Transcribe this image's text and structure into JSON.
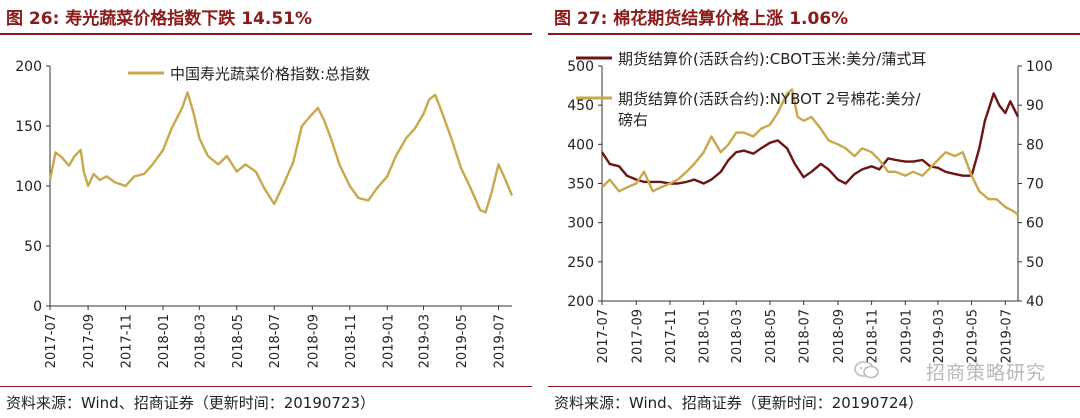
{
  "left": {
    "title": "图 26:  寿光蔬菜价格指数下跌 14.51%",
    "source": "资料来源：Wind、招商证券（更新时间：20190723）"
  },
  "right": {
    "title": "图 27:  棉花期货结算价格上涨 1.06%",
    "source": "资料来源：Wind、招商证券（更新时间：20190724）"
  },
  "watermark": "招商策略研究",
  "colors": {
    "title": "#8b1a1a",
    "series_gold": "#c8a84b",
    "series_maroon": "#6e1414"
  },
  "chart_data": [
    {
      "type": "line",
      "title": "",
      "xlabel": "",
      "ylabel": "",
      "ylim": [
        0,
        200
      ],
      "yticks": [
        0,
        50,
        100,
        150,
        200
      ],
      "xticks": [
        "2017-07",
        "2017-09",
        "2017-11",
        "2018-01",
        "2018-03",
        "2018-05",
        "2018-07",
        "2018-09",
        "2018-11",
        "2019-01",
        "2019-03",
        "2019-05",
        "2019-07"
      ],
      "x_range": [
        "2017-07-01",
        "2019-07-23"
      ],
      "legend_position": "top-center",
      "series": [
        {
          "name": "中国寿光蔬菜价格指数:总指数",
          "color": "#c8a84b",
          "points": [
            [
              "2017-07-01",
              105
            ],
            [
              "2017-07-10",
              128
            ],
            [
              "2017-07-20",
              124
            ],
            [
              "2017-08-01",
              117
            ],
            [
              "2017-08-10",
              125
            ],
            [
              "2017-08-20",
              130
            ],
            [
              "2017-08-25",
              112
            ],
            [
              "2017-09-01",
              100
            ],
            [
              "2017-09-10",
              110
            ],
            [
              "2017-09-20",
              105
            ],
            [
              "2017-10-01",
              108
            ],
            [
              "2017-10-15",
              103
            ],
            [
              "2017-11-01",
              100
            ],
            [
              "2017-11-15",
              108
            ],
            [
              "2017-12-01",
              110
            ],
            [
              "2017-12-15",
              118
            ],
            [
              "2018-01-01",
              130
            ],
            [
              "2018-01-15",
              148
            ],
            [
              "2018-02-01",
              165
            ],
            [
              "2018-02-10",
              178
            ],
            [
              "2018-02-20",
              160
            ],
            [
              "2018-03-01",
              140
            ],
            [
              "2018-03-15",
              125
            ],
            [
              "2018-04-01",
              118
            ],
            [
              "2018-04-15",
              125
            ],
            [
              "2018-05-01",
              112
            ],
            [
              "2018-05-15",
              118
            ],
            [
              "2018-06-01",
              112
            ],
            [
              "2018-06-15",
              98
            ],
            [
              "2018-07-01",
              85
            ],
            [
              "2018-07-15",
              100
            ],
            [
              "2018-08-01",
              120
            ],
            [
              "2018-08-15",
              150
            ],
            [
              "2018-09-01",
              160
            ],
            [
              "2018-09-10",
              165
            ],
            [
              "2018-09-20",
              155
            ],
            [
              "2018-10-01",
              140
            ],
            [
              "2018-10-15",
              118
            ],
            [
              "2018-11-01",
              100
            ],
            [
              "2018-11-15",
              90
            ],
            [
              "2018-12-01",
              88
            ],
            [
              "2018-12-15",
              98
            ],
            [
              "2019-01-01",
              108
            ],
            [
              "2019-01-15",
              125
            ],
            [
              "2019-02-01",
              140
            ],
            [
              "2019-02-15",
              148
            ],
            [
              "2019-03-01",
              160
            ],
            [
              "2019-03-10",
              172
            ],
            [
              "2019-03-20",
              176
            ],
            [
              "2019-04-01",
              160
            ],
            [
              "2019-04-15",
              140
            ],
            [
              "2019-05-01",
              115
            ],
            [
              "2019-05-15",
              100
            ],
            [
              "2019-06-01",
              80
            ],
            [
              "2019-06-10",
              78
            ],
            [
              "2019-06-20",
              95
            ],
            [
              "2019-07-01",
              118
            ],
            [
              "2019-07-10",
              108
            ],
            [
              "2019-07-23",
              92
            ]
          ]
        }
      ]
    },
    {
      "type": "line",
      "title": "",
      "xlabel": "",
      "ylabel": "",
      "ylim": [
        200,
        500
      ],
      "yticks": [
        200,
        250,
        300,
        350,
        400,
        450,
        500
      ],
      "y2lim": [
        40,
        100
      ],
      "y2ticks": [
        40,
        50,
        60,
        70,
        80,
        90,
        100
      ],
      "xticks": [
        "2017-07",
        "2017-09",
        "2017-11",
        "2018-01",
        "2018-03",
        "2018-05",
        "2018-07",
        "2018-09",
        "2018-11",
        "2019-01",
        "2019-03",
        "2019-05",
        "2019-07"
      ],
      "x_range": [
        "2017-07-01",
        "2019-07-24"
      ],
      "legend_position": "top-left",
      "series": [
        {
          "name": "期货结算价(活跃合约):CBOT玉米:美分/蒲式耳",
          "axis": "left",
          "color": "#6e1414",
          "points": [
            [
              "2017-07-01",
              390
            ],
            [
              "2017-07-15",
              375
            ],
            [
              "2017-08-01",
              372
            ],
            [
              "2017-08-15",
              360
            ],
            [
              "2017-09-01",
              355
            ],
            [
              "2017-09-15",
              352
            ],
            [
              "2017-10-01",
              352
            ],
            [
              "2017-10-15",
              352
            ],
            [
              "2017-11-01",
              350
            ],
            [
              "2017-11-15",
              350
            ],
            [
              "2017-12-01",
              352
            ],
            [
              "2017-12-15",
              355
            ],
            [
              "2018-01-01",
              350
            ],
            [
              "2018-01-15",
              355
            ],
            [
              "2018-02-01",
              365
            ],
            [
              "2018-02-15",
              380
            ],
            [
              "2018-03-01",
              390
            ],
            [
              "2018-03-15",
              392
            ],
            [
              "2018-04-01",
              388
            ],
            [
              "2018-04-15",
              395
            ],
            [
              "2018-05-01",
              402
            ],
            [
              "2018-05-15",
              405
            ],
            [
              "2018-06-01",
              395
            ],
            [
              "2018-06-15",
              375
            ],
            [
              "2018-07-01",
              358
            ],
            [
              "2018-07-15",
              365
            ],
            [
              "2018-08-01",
              375
            ],
            [
              "2018-08-15",
              368
            ],
            [
              "2018-09-01",
              355
            ],
            [
              "2018-09-15",
              350
            ],
            [
              "2018-10-01",
              362
            ],
            [
              "2018-10-15",
              368
            ],
            [
              "2018-11-01",
              372
            ],
            [
              "2018-11-15",
              368
            ],
            [
              "2018-12-01",
              382
            ],
            [
              "2018-12-15",
              380
            ],
            [
              "2019-01-01",
              378
            ],
            [
              "2019-01-15",
              378
            ],
            [
              "2019-02-01",
              380
            ],
            [
              "2019-02-15",
              372
            ],
            [
              "2019-03-01",
              370
            ],
            [
              "2019-03-15",
              365
            ],
            [
              "2019-04-01",
              362
            ],
            [
              "2019-04-15",
              360
            ],
            [
              "2019-05-01",
              360
            ],
            [
              "2019-05-15",
              395
            ],
            [
              "2019-05-25",
              430
            ],
            [
              "2019-06-01",
              445
            ],
            [
              "2019-06-10",
              465
            ],
            [
              "2019-06-20",
              450
            ],
            [
              "2019-07-01",
              440
            ],
            [
              "2019-07-10",
              455
            ],
            [
              "2019-07-24",
              435
            ]
          ]
        },
        {
          "name": "期货结算价(活跃合约):NYBOT 2号棉花:美分/磅右",
          "axis": "right",
          "color": "#c8a84b",
          "points": [
            [
              "2017-07-01",
              69
            ],
            [
              "2017-07-15",
              71
            ],
            [
              "2017-08-01",
              68
            ],
            [
              "2017-08-15",
              69
            ],
            [
              "2017-09-01",
              70
            ],
            [
              "2017-09-15",
              73
            ],
            [
              "2017-10-01",
              68
            ],
            [
              "2017-10-15",
              69
            ],
            [
              "2017-11-01",
              70
            ],
            [
              "2017-11-15",
              71
            ],
            [
              "2017-12-01",
              73
            ],
            [
              "2017-12-15",
              75
            ],
            [
              "2018-01-01",
              78
            ],
            [
              "2018-01-15",
              82
            ],
            [
              "2018-02-01",
              78
            ],
            [
              "2018-02-15",
              80
            ],
            [
              "2018-03-01",
              83
            ],
            [
              "2018-03-15",
              83
            ],
            [
              "2018-04-01",
              82
            ],
            [
              "2018-04-15",
              84
            ],
            [
              "2018-05-01",
              85
            ],
            [
              "2018-05-15",
              88
            ],
            [
              "2018-06-01",
              93
            ],
            [
              "2018-06-10",
              94
            ],
            [
              "2018-06-20",
              87
            ],
            [
              "2018-07-01",
              86
            ],
            [
              "2018-07-15",
              87
            ],
            [
              "2018-08-01",
              84
            ],
            [
              "2018-08-15",
              81
            ],
            [
              "2018-09-01",
              80
            ],
            [
              "2018-09-15",
              79
            ],
            [
              "2018-10-01",
              77
            ],
            [
              "2018-10-15",
              79
            ],
            [
              "2018-11-01",
              78
            ],
            [
              "2018-11-15",
              76
            ],
            [
              "2018-12-01",
              73
            ],
            [
              "2018-12-15",
              73
            ],
            [
              "2019-01-01",
              72
            ],
            [
              "2019-01-15",
              73
            ],
            [
              "2019-02-01",
              72
            ],
            [
              "2019-02-15",
              74
            ],
            [
              "2019-03-01",
              76
            ],
            [
              "2019-03-15",
              78
            ],
            [
              "2019-04-01",
              77
            ],
            [
              "2019-04-15",
              78
            ],
            [
              "2019-05-01",
              72
            ],
            [
              "2019-05-15",
              68
            ],
            [
              "2019-06-01",
              66
            ],
            [
              "2019-06-15",
              66
            ],
            [
              "2019-07-01",
              64
            ],
            [
              "2019-07-15",
              63
            ],
            [
              "2019-07-24",
              62
            ]
          ]
        }
      ]
    }
  ]
}
